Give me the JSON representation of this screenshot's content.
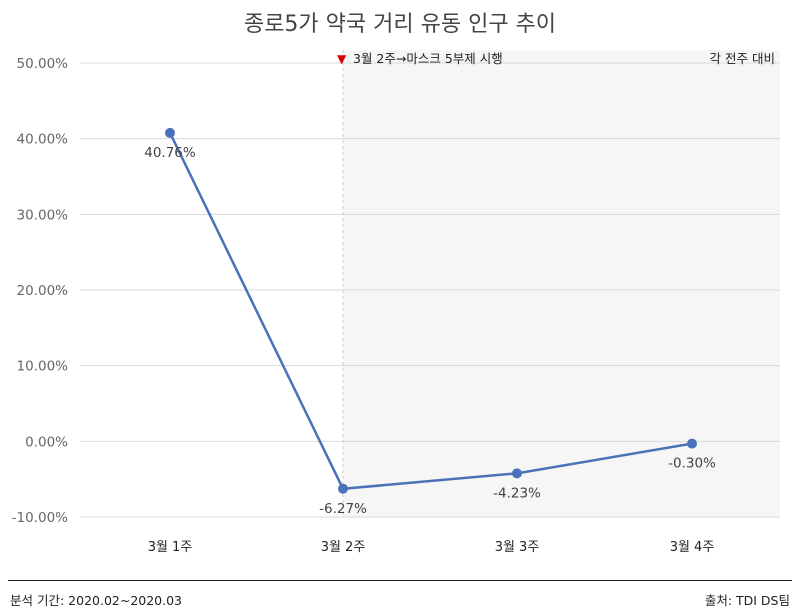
{
  "chart_data": {
    "type": "line",
    "title": "종로5가 약국 거리 유동 인구 추이",
    "categories": [
      "3월 1주",
      "3월 2주",
      "3월 3주",
      "3월 4주"
    ],
    "series": [
      {
        "values": [
          40.76,
          -6.27,
          -4.23,
          -0.3
        ],
        "color": "#4a72b8"
      }
    ],
    "data_labels": [
      "40.76%",
      "-6.27%",
      "-4.23%",
      "-0.30%"
    ],
    "yticks": [
      50,
      40,
      30,
      20,
      10,
      0,
      -10
    ],
    "ytick_labels": [
      "50.00%",
      "40.00%",
      "30.00%",
      "20.00%",
      "10.00%",
      "0.00%",
      "-10.00%"
    ],
    "ylim": [
      -10,
      50
    ],
    "grid": true,
    "annotation": {
      "marker": "▼",
      "text": "3월 2주→마스크 5부제 시행",
      "at_category": "3월 2주",
      "marker_color": "#dd0000"
    },
    "shaded_region": {
      "from_category": "3월 2주",
      "to": "end",
      "color": "#f6f6f6"
    },
    "corner_note": "각 전주 대비"
  },
  "footer": {
    "period": "분석 기간: 2020.02~2020.03",
    "source": "출처: TDI DS팀"
  }
}
